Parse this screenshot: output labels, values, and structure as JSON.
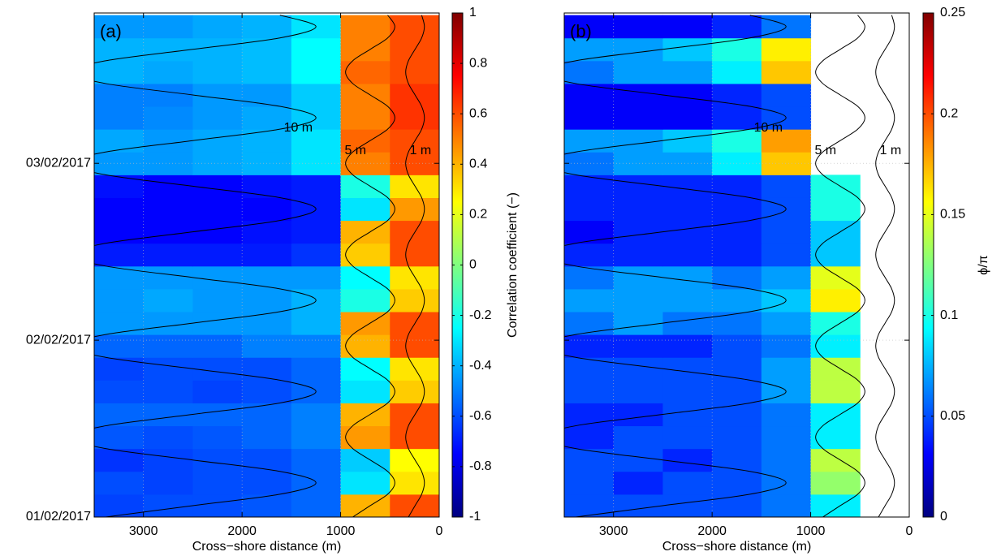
{
  "chart_data": [
    {
      "type": "heatmap",
      "label": "(a)",
      "xlabel": "Cross−shore distance (m)",
      "xlim": [
        3500,
        0
      ],
      "xticks": [
        3000,
        2000,
        1000,
        0
      ],
      "ylim": [
        0,
        2.85
      ],
      "yticks": [
        {
          "value": 0,
          "label": "01/02/2017"
        },
        {
          "value": 1,
          "label": "02/02/2017"
        },
        {
          "value": 2,
          "label": "03/02/2017"
        }
      ],
      "grid": true,
      "colormap": "jet",
      "clim": [
        -1,
        1
      ],
      "cticks": [
        -1,
        -0.8,
        -0.6,
        -0.4,
        -0.2,
        0,
        0.2,
        0.4,
        0.6,
        0.8,
        1
      ],
      "clabel": "Correlation coefficient (−)",
      "x": [
        3250,
        2750,
        2250,
        1750,
        1250,
        750,
        250
      ],
      "y": [
        0.0645,
        0.1935,
        0.3225,
        0.4515,
        0.5805,
        0.7095,
        0.8385,
        0.9675,
        1.0965,
        1.2255,
        1.3545,
        1.4835,
        1.6125,
        1.7415,
        1.8705,
        1.9995,
        2.1285,
        2.2575,
        2.3865,
        2.5155,
        2.6445,
        2.7735
      ],
      "z": [
        [
          -0.62,
          -0.6,
          -0.6,
          -0.58,
          -0.55,
          0.4,
          0.6
        ],
        [
          -0.6,
          -0.62,
          -0.6,
          -0.6,
          -0.55,
          -0.3,
          0.3
        ],
        [
          -0.65,
          -0.62,
          -0.6,
          -0.6,
          -0.55,
          -0.35,
          0.25
        ],
        [
          -0.58,
          -0.6,
          -0.58,
          -0.55,
          -0.5,
          0.45,
          0.6
        ],
        [
          -0.55,
          -0.55,
          -0.55,
          -0.55,
          -0.5,
          0.4,
          0.6
        ],
        [
          -0.6,
          -0.6,
          -0.62,
          -0.6,
          -0.55,
          -0.3,
          0.35
        ],
        [
          -0.62,
          -0.6,
          -0.6,
          -0.6,
          -0.55,
          -0.25,
          0.3
        ],
        [
          -0.55,
          -0.55,
          -0.55,
          -0.5,
          -0.5,
          0.4,
          0.6
        ],
        [
          -0.45,
          -0.45,
          -0.45,
          -0.45,
          -0.4,
          0.45,
          0.6
        ],
        [
          -0.45,
          -0.42,
          -0.45,
          -0.45,
          -0.4,
          -0.2,
          0.35
        ],
        [
          -0.45,
          -0.45,
          -0.45,
          -0.45,
          -0.45,
          -0.25,
          0.3
        ],
        [
          -0.7,
          -0.7,
          -0.7,
          -0.7,
          -0.65,
          0.35,
          0.6
        ],
        [
          -0.75,
          -0.75,
          -0.75,
          -0.72,
          -0.7,
          0.4,
          0.6
        ],
        [
          -0.75,
          -0.75,
          -0.75,
          -0.75,
          -0.7,
          -0.3,
          0.45
        ],
        [
          -0.72,
          -0.75,
          -0.75,
          -0.72,
          -0.7,
          -0.2,
          0.3
        ],
        [
          -0.45,
          -0.45,
          -0.42,
          -0.4,
          -0.3,
          0.5,
          0.6
        ],
        [
          -0.42,
          -0.45,
          -0.42,
          -0.4,
          -0.3,
          0.55,
          0.6
        ],
        [
          -0.5,
          -0.48,
          -0.45,
          -0.42,
          -0.35,
          0.5,
          0.65
        ],
        [
          -0.5,
          -0.5,
          -0.45,
          -0.45,
          -0.35,
          0.5,
          0.65
        ],
        [
          -0.4,
          -0.42,
          -0.4,
          -0.38,
          -0.25,
          0.55,
          0.6
        ],
        [
          -0.4,
          -0.4,
          -0.4,
          -0.38,
          -0.25,
          0.5,
          0.6
        ],
        [
          -0.45,
          -0.45,
          -0.42,
          -0.4,
          -0.3,
          0.5,
          0.6
        ]
      ],
      "contours": {
        "y": [
          0,
          0.0645,
          0.129,
          0.1935,
          0.258,
          0.3225,
          0.387,
          0.4515,
          0.516,
          0.5805,
          0.645,
          0.7095,
          0.774,
          0.8385,
          0.903,
          0.9675,
          1.032,
          1.0965,
          1.161,
          1.2255,
          1.29,
          1.3545,
          1.419,
          1.4835,
          1.548,
          1.6125,
          1.677,
          1.7415,
          1.806,
          1.8705,
          1.935,
          1.9995,
          2.064,
          2.1285,
          2.193,
          2.2575,
          2.322,
          2.3865,
          2.451,
          2.5155,
          2.58,
          2.6445,
          2.709,
          2.7735,
          2.838
        ],
        "series": [
          {
            "name": "10 m",
            "color": "#000000",
            "x": [
              3384,
              2500,
              1616,
              1250,
              1616,
              2500,
              3384,
              3750,
              3384,
              2500,
              1616,
              1250,
              1616,
              2500,
              3384,
              3750,
              3384,
              2500,
              1616,
              1250,
              1616,
              2500,
              3384,
              3750,
              3384,
              2500,
              1616,
              1250,
              1616,
              2500,
              3384,
              3750,
              3384,
              2500,
              1616,
              1250,
              1616,
              2500,
              3384,
              3750,
              3384,
              2500,
              1616,
              1250,
              1616
            ]
          },
          {
            "name": "5 m",
            "color": "#000000",
            "x": [
              877,
              700,
              523,
              450,
              523,
              700,
              877,
              950,
              877,
              700,
              523,
              450,
              523,
              700,
              877,
              950,
              877,
              700,
              523,
              450,
              523,
              700,
              877,
              950,
              877,
              700,
              523,
              450,
              523,
              700,
              877,
              950,
              877,
              700,
              523,
              450,
              523,
              700,
              877,
              950,
              877,
              700,
              523,
              450,
              523
            ]
          },
          {
            "name": "1 m",
            "color": "#000000",
            "x": [
              312,
              245,
              178,
              150,
              178,
              245,
              312,
              340,
              312,
              245,
              178,
              150,
              178,
              245,
              312,
              340,
              312,
              245,
              178,
              150,
              178,
              245,
              312,
              340,
              312,
              245,
              178,
              150,
              178,
              245,
              312,
              340,
              312,
              245,
              178,
              150,
              178,
              245,
              312,
              340,
              312,
              245,
              178,
              150,
              178
            ]
          }
        ]
      }
    },
    {
      "type": "heatmap",
      "label": "(b)",
      "xlabel": "Cross−shore distance (m)",
      "xlim": [
        3500,
        0
      ],
      "xticks": [
        3000,
        2000,
        1000,
        0
      ],
      "ylim": [
        0,
        2.85
      ],
      "grid": true,
      "colormap": "jet",
      "clim": [
        0,
        0.25
      ],
      "cticks": [
        0,
        0.05,
        0.1,
        0.15,
        0.2,
        0.25
      ],
      "clabel": "ϕ/π",
      "x": [
        3250,
        2750,
        2250,
        1750,
        1250,
        750,
        250
      ],
      "y": [
        0.0645,
        0.1935,
        0.3225,
        0.4515,
        0.5805,
        0.7095,
        0.8385,
        0.9675,
        1.0965,
        1.2255,
        1.3545,
        1.4835,
        1.6125,
        1.7415,
        1.8705,
        1.9995,
        2.1285,
        2.2575,
        2.3865,
        2.5155,
        2.6445,
        2.7735
      ],
      "z": [
        [
          0.05,
          0.05,
          0.05,
          0.05,
          0.06,
          0.09,
          null
        ],
        [
          0.05,
          0.04,
          0.05,
          0.05,
          0.06,
          0.13,
          null
        ],
        [
          0.05,
          0.05,
          0.04,
          0.05,
          0.06,
          0.14,
          null
        ],
        [
          0.04,
          0.05,
          0.05,
          0.05,
          0.06,
          0.09,
          null
        ],
        [
          0.04,
          0.04,
          0.05,
          0.05,
          0.06,
          0.09,
          null
        ],
        [
          0.05,
          0.05,
          0.05,
          0.05,
          0.07,
          0.14,
          null
        ],
        [
          0.05,
          0.05,
          0.05,
          0.05,
          0.07,
          0.14,
          null
        ],
        [
          0.04,
          0.04,
          0.04,
          0.05,
          0.06,
          0.09,
          null
        ],
        [
          0.06,
          0.07,
          0.06,
          0.06,
          0.07,
          0.1,
          null
        ],
        [
          0.07,
          0.07,
          0.07,
          0.07,
          0.08,
          0.16,
          null
        ],
        [
          0.06,
          0.07,
          0.07,
          0.06,
          0.07,
          0.15,
          null
        ],
        [
          0.04,
          0.04,
          0.04,
          0.04,
          0.05,
          0.08,
          null
        ],
        [
          0.03,
          0.04,
          0.04,
          0.04,
          0.05,
          0.08,
          null
        ],
        [
          0.04,
          0.04,
          0.04,
          0.04,
          0.05,
          0.1,
          null
        ],
        [
          0.04,
          0.04,
          0.04,
          0.04,
          0.05,
          0.1,
          null
        ],
        [
          0.06,
          0.07,
          0.07,
          0.09,
          0.17,
          null,
          null
        ],
        [
          0.07,
          0.07,
          0.08,
          0.1,
          0.18,
          null,
          null
        ],
        [
          0.03,
          0.03,
          0.03,
          0.04,
          0.05,
          null,
          null
        ],
        [
          0.03,
          0.03,
          0.03,
          0.04,
          0.05,
          null,
          null
        ],
        [
          0.06,
          0.07,
          0.07,
          0.09,
          0.17,
          null,
          null
        ],
        [
          0.07,
          0.07,
          0.08,
          0.1,
          0.16,
          null,
          null
        ],
        [
          0.03,
          0.03,
          0.03,
          0.04,
          0.06,
          null,
          null
        ]
      ],
      "contours": {
        "y": [
          0,
          0.0645,
          0.129,
          0.1935,
          0.258,
          0.3225,
          0.387,
          0.4515,
          0.516,
          0.5805,
          0.645,
          0.7095,
          0.774,
          0.8385,
          0.903,
          0.9675,
          1.032,
          1.0965,
          1.161,
          1.2255,
          1.29,
          1.3545,
          1.419,
          1.4835,
          1.548,
          1.6125,
          1.677,
          1.7415,
          1.806,
          1.8705,
          1.935,
          1.9995,
          2.064,
          2.1285,
          2.193,
          2.2575,
          2.322,
          2.3865,
          2.451,
          2.5155,
          2.58,
          2.6445,
          2.709,
          2.7735,
          2.838
        ],
        "series": [
          {
            "name": "10 m",
            "color": "#000000",
            "x": [
              3384,
              2500,
              1616,
              1250,
              1616,
              2500,
              3384,
              3750,
              3384,
              2500,
              1616,
              1250,
              1616,
              2500,
              3384,
              3750,
              3384,
              2500,
              1616,
              1250,
              1616,
              2500,
              3384,
              3750,
              3384,
              2500,
              1616,
              1250,
              1616,
              2500,
              3384,
              3750,
              3384,
              2500,
              1616,
              1250,
              1616,
              2500,
              3384,
              3750,
              3384,
              2500,
              1616,
              1250,
              1616
            ]
          },
          {
            "name": "5 m",
            "color": "#000000",
            "x": [
              877,
              700,
              523,
              450,
              523,
              700,
              877,
              950,
              877,
              700,
              523,
              450,
              523,
              700,
              877,
              950,
              877,
              700,
              523,
              450,
              523,
              700,
              877,
              950,
              877,
              700,
              523,
              450,
              523,
              700,
              877,
              950,
              877,
              700,
              523,
              450,
              523,
              700,
              877,
              950,
              877,
              700,
              523,
              450,
              523
            ]
          },
          {
            "name": "1 m",
            "color": "#000000",
            "x": [
              312,
              245,
              178,
              150,
              178,
              245,
              312,
              340,
              312,
              245,
              178,
              150,
              178,
              245,
              312,
              340,
              312,
              245,
              178,
              150,
              178,
              245,
              312,
              340,
              312,
              245,
              178,
              150,
              178,
              245,
              312,
              340,
              312,
              245,
              178,
              150,
              178,
              245,
              312,
              340,
              312,
              245,
              178,
              150,
              178
            ]
          }
        ]
      }
    }
  ]
}
